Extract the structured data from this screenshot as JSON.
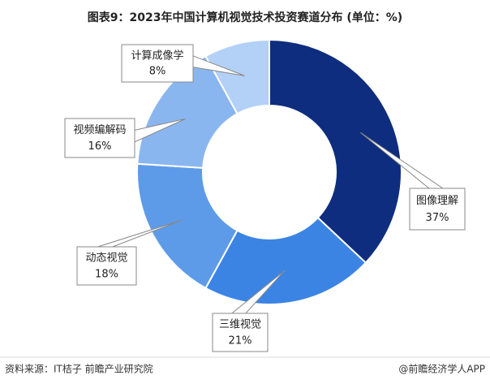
{
  "chart_data": {
    "type": "donut",
    "title": "图表9：2023年中国计算机视觉技术投资赛道分布 (单位：%)",
    "categories": [
      "图像理解",
      "三维视觉",
      "动态视觉",
      "视频编解码",
      "计算成像学"
    ],
    "values": [
      37,
      21,
      18,
      16,
      8
    ],
    "value_labels": [
      "37%",
      "21%",
      "18%",
      "16%",
      "8%"
    ],
    "colors": [
      "#0e2d7e",
      "#3b84e4",
      "#5d9be8",
      "#8ab6f0",
      "#b3d0f6"
    ],
    "source": "资料来源：IT桔子 前瞻产业研究院",
    "credit": "@前瞻经济学人APP"
  }
}
